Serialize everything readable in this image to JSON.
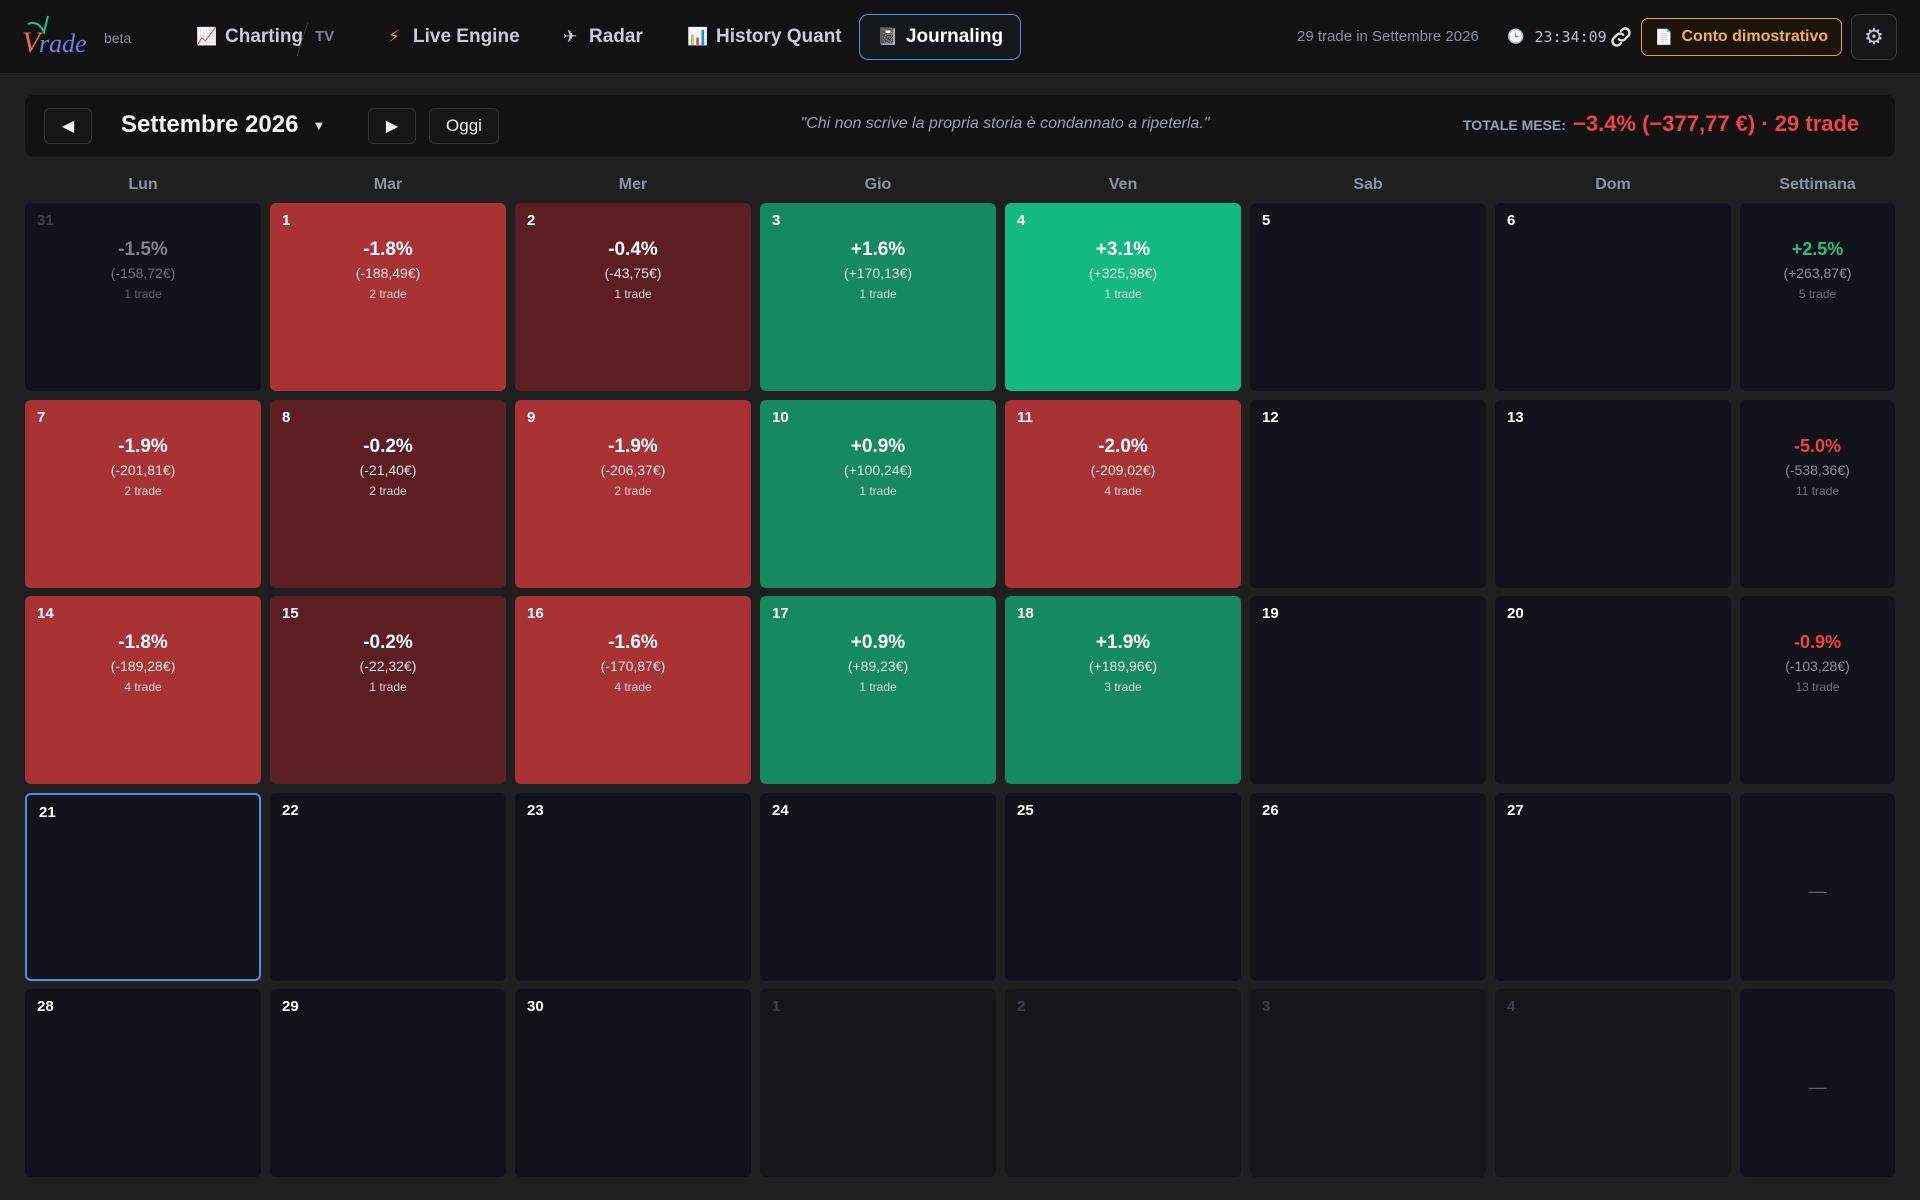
{
  "brand": {
    "logo_text": "Vtrade",
    "beta_label": "beta"
  },
  "nav": [
    {
      "label": "Charting",
      "icon": "chart-icon",
      "glyph": "📈"
    },
    {
      "label": "Live Engine",
      "icon": "lightning-icon",
      "glyph": "⚡"
    },
    {
      "label": "Radar",
      "icon": "radar-icon",
      "glyph": "✈"
    },
    {
      "label": "History Quant",
      "icon": "bar-chart-icon",
      "glyph": "📊"
    },
    {
      "label": "Journaling",
      "icon": "notebook-icon",
      "glyph": "📓"
    }
  ],
  "tv_label": "TV",
  "header_right": {
    "trade_count": "29 trade in Settembre 2026",
    "clock": "23:34:09",
    "demo_label": "Conto dimostrativo"
  },
  "month_bar": {
    "title": "Settembre 2026",
    "today_label": "Oggi",
    "quote": "\"Chi non scrive la propria storia è condannato a ripeterla.\"",
    "total_label": "TOTALE MESE:",
    "total_value": "−3.4% (−377,77 €) · 29 trade"
  },
  "weekdays": [
    "Lun",
    "Mar",
    "Mer",
    "Gio",
    "Ven",
    "Sab",
    "Dom",
    "Settimana"
  ],
  "colors": {
    "loss": "#ef4444",
    "gain": "#22c38a",
    "accent": "#4a8ff0",
    "demo": "#f1b04a"
  },
  "weeks": [
    {
      "days": [
        {
          "num": "31",
          "pct": "-1.5%",
          "amt": "(-158,72€)",
          "cnt": "1 trade",
          "kind": "outside"
        },
        {
          "num": "1",
          "pct": "-1.8%",
          "amt": "(-188,49€)",
          "cnt": "2 trade",
          "kind": "red"
        },
        {
          "num": "2",
          "pct": "-0.4%",
          "amt": "(-43,75€)",
          "cnt": "1 trade",
          "kind": "deepred"
        },
        {
          "num": "3",
          "pct": "+1.6%",
          "amt": "(+170,13€)",
          "cnt": "1 trade",
          "kind": "green"
        },
        {
          "num": "4",
          "pct": "+3.1%",
          "amt": "(+325,98€)",
          "cnt": "1 trade",
          "kind": "brightgreen"
        },
        {
          "num": "5",
          "kind": "empty"
        },
        {
          "num": "6",
          "kind": "empty"
        }
      ],
      "week": {
        "pct": "+2.5%",
        "amt": "(+263,87€)",
        "cnt": "5 trade",
        "sign": "gain"
      }
    },
    {
      "days": [
        {
          "num": "7",
          "pct": "-1.9%",
          "amt": "(-201,81€)",
          "cnt": "2 trade",
          "kind": "red"
        },
        {
          "num": "8",
          "pct": "-0.2%",
          "amt": "(-21,40€)",
          "cnt": "2 trade",
          "kind": "deepred"
        },
        {
          "num": "9",
          "pct": "-1.9%",
          "amt": "(-206,37€)",
          "cnt": "2 trade",
          "kind": "red"
        },
        {
          "num": "10",
          "pct": "+0.9%",
          "amt": "(+100,24€)",
          "cnt": "1 trade",
          "kind": "green"
        },
        {
          "num": "11",
          "pct": "-2.0%",
          "amt": "(-209,02€)",
          "cnt": "4 trade",
          "kind": "red"
        },
        {
          "num": "12",
          "kind": "empty"
        },
        {
          "num": "13",
          "kind": "empty"
        }
      ],
      "week": {
        "pct": "-5.0%",
        "amt": "(-538,36€)",
        "cnt": "11 trade",
        "sign": "loss"
      }
    },
    {
      "days": [
        {
          "num": "14",
          "pct": "-1.8%",
          "amt": "(-189,28€)",
          "cnt": "4 trade",
          "kind": "red"
        },
        {
          "num": "15",
          "pct": "-0.2%",
          "amt": "(-22,32€)",
          "cnt": "1 trade",
          "kind": "deepred"
        },
        {
          "num": "16",
          "pct": "-1.6%",
          "amt": "(-170,87€)",
          "cnt": "4 trade",
          "kind": "red"
        },
        {
          "num": "17",
          "pct": "+0.9%",
          "amt": "(+89,23€)",
          "cnt": "1 trade",
          "kind": "green"
        },
        {
          "num": "18",
          "pct": "+1.9%",
          "amt": "(+189,96€)",
          "cnt": "3 trade",
          "kind": "green"
        },
        {
          "num": "19",
          "kind": "empty"
        },
        {
          "num": "20",
          "kind": "empty"
        }
      ],
      "week": {
        "pct": "-0.9%",
        "amt": "(-103,28€)",
        "cnt": "13 trade",
        "sign": "loss"
      }
    },
    {
      "days": [
        {
          "num": "21",
          "kind": "today"
        },
        {
          "num": "22",
          "kind": "empty"
        },
        {
          "num": "23",
          "kind": "empty"
        },
        {
          "num": "24",
          "kind": "empty"
        },
        {
          "num": "25",
          "kind": "empty"
        },
        {
          "num": "26",
          "kind": "empty"
        },
        {
          "num": "27",
          "kind": "empty"
        }
      ],
      "week": {
        "dash": "—"
      }
    },
    {
      "days": [
        {
          "num": "28",
          "kind": "empty"
        },
        {
          "num": "29",
          "kind": "empty"
        },
        {
          "num": "30",
          "kind": "empty"
        },
        {
          "num": "1",
          "kind": "other"
        },
        {
          "num": "2",
          "kind": "other"
        },
        {
          "num": "3",
          "kind": "other"
        },
        {
          "num": "4",
          "kind": "other"
        }
      ],
      "week": {
        "dash": "—"
      }
    }
  ]
}
